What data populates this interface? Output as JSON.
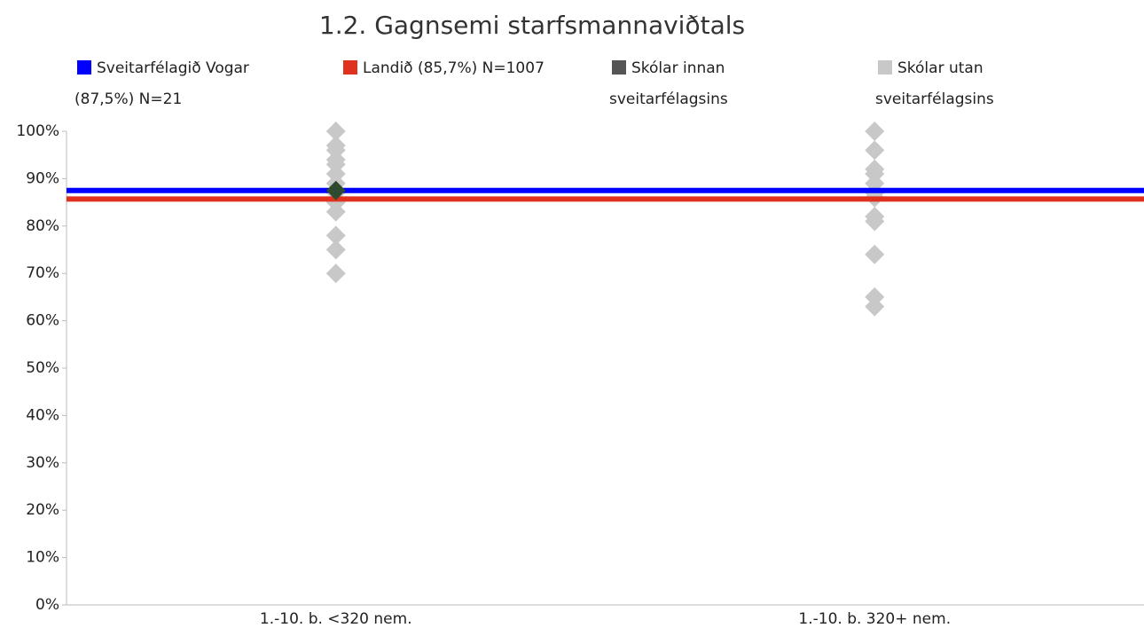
{
  "chart_data": {
    "type": "dot-strip",
    "title": "1.2. Gagnsemi starfsmannaviðtals",
    "categories": [
      "1.-10. b. <320 nem.",
      "1.-10. b. 320+ nem."
    ],
    "ylim": [
      0,
      100
    ],
    "yticks": [
      {
        "value": 0,
        "label": "0%"
      },
      {
        "value": 10,
        "label": "10%"
      },
      {
        "value": 20,
        "label": "20%"
      },
      {
        "value": 30,
        "label": "30%"
      },
      {
        "value": 40,
        "label": "40%"
      },
      {
        "value": 50,
        "label": "50%"
      },
      {
        "value": 60,
        "label": "60%"
      },
      {
        "value": 70,
        "label": "70%"
      },
      {
        "value": 80,
        "label": "80%"
      },
      {
        "value": 90,
        "label": "90%"
      },
      {
        "value": 100,
        "label": "100%"
      }
    ],
    "series": [
      {
        "name": "Sveitarfélagið Vogar (87,5%) N=21",
        "kind": "line",
        "color": "#0000ff",
        "values": [
          87.5,
          87.5
        ]
      },
      {
        "name": "Landið (85,7%) N=1007",
        "kind": "line",
        "color": "#e0301e",
        "values": [
          85.7,
          85.7
        ]
      },
      {
        "name": "Skólar innan sveitarfélagsins",
        "kind": "points",
        "color": "#2f4a2f",
        "legend_color": "#555555",
        "values": [
          [
            87.5
          ],
          []
        ]
      },
      {
        "name": "Skólar utan sveitarfélagsins",
        "kind": "points",
        "color": "#c8c8c8",
        "values": [
          [
            100,
            97,
            96,
            94,
            93,
            91,
            89,
            87,
            85,
            83,
            78,
            75,
            70
          ],
          [
            100,
            96,
            92,
            91,
            89,
            87,
            86,
            82,
            81,
            74,
            65,
            63
          ]
        ]
      }
    ]
  }
}
